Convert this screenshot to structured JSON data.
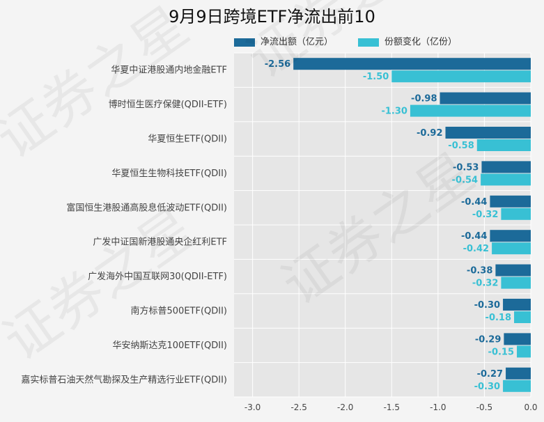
{
  "title": "9月9日跨境ETF净流出前10",
  "legend": [
    {
      "label": "净流出额（亿元）",
      "color": "#1c6a99"
    },
    {
      "label": "份额变化（亿份）",
      "color": "#38c0d4"
    }
  ],
  "watermark": "证券之星",
  "chart_data": {
    "type": "bar",
    "orientation": "horizontal",
    "title": "9月9日跨境ETF净流出前10",
    "categories": [
      "华夏中证港股通内地金融ETF",
      "博时恒生医疗保健(QDII-ETF)",
      "华夏恒生ETF(QDII)",
      "华夏恒生生物科技ETF(QDII)",
      "富国恒生港股通高股息低波动ETF(QDII)",
      "广发中证国新港股通央企红利ETF",
      "广发海外中国互联网30(QDII-ETF)",
      "南方标普500ETF(QDII)",
      "华安纳斯达克100ETF(QDII)",
      "嘉实标普石油天然气勘探及生产精选行业ETF(QDII)"
    ],
    "series": [
      {
        "name": "净流出额（亿元）",
        "color": "#1c6a99",
        "values": [
          -2.56,
          -0.98,
          -0.92,
          -0.53,
          -0.44,
          -0.44,
          -0.38,
          -0.3,
          -0.29,
          -0.27
        ],
        "labels": [
          "-2.56",
          "-0.98",
          "-0.92",
          "-0.53",
          "-0.44",
          "-0.44",
          "-0.38",
          "-0.30",
          "-0.29",
          "-0.27"
        ]
      },
      {
        "name": "份额变化（亿份）",
        "color": "#38c0d4",
        "values": [
          -1.5,
          -1.3,
          -0.58,
          -0.54,
          -0.32,
          -0.42,
          -0.32,
          -0.18,
          -0.15,
          -0.3
        ],
        "labels": [
          "-1.50",
          "-1.30",
          "-0.58",
          "-0.54",
          "-0.32",
          "-0.42",
          "-0.32",
          "-0.18",
          "-0.15",
          "-0.30"
        ]
      }
    ],
    "xlim": [
      -3.2,
      0.0
    ],
    "xticks": [
      -3.0,
      -2.5,
      -2.0,
      -1.5,
      -1.0,
      -0.5,
      0.0
    ],
    "xtick_labels": [
      "-3.0",
      "-2.5",
      "-2.0",
      "-1.5",
      "-1.0",
      "-0.5",
      "0.0"
    ],
    "grid": true,
    "legend_position": "top"
  }
}
